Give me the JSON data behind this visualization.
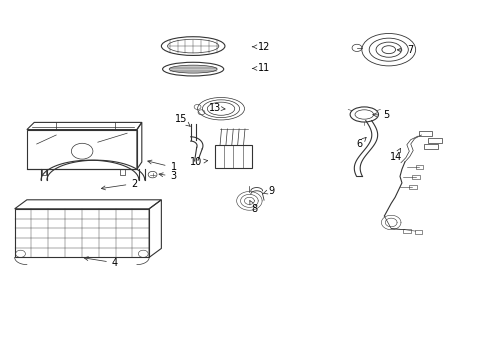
{
  "background_color": "#ffffff",
  "line_color": "#333333",
  "label_color": "#000000",
  "figsize": [
    4.89,
    3.6
  ],
  "dpi": 100,
  "label_specs": [
    [
      1,
      0.355,
      0.535,
      0.295,
      0.555
    ],
    [
      2,
      0.275,
      0.49,
      0.2,
      0.475
    ],
    [
      3,
      0.355,
      0.51,
      0.318,
      0.518
    ],
    [
      4,
      0.235,
      0.27,
      0.165,
      0.285
    ],
    [
      5,
      0.79,
      0.68,
      0.755,
      0.682
    ],
    [
      6,
      0.735,
      0.6,
      0.75,
      0.62
    ],
    [
      7,
      0.84,
      0.86,
      0.805,
      0.862
    ],
    [
      8,
      0.52,
      0.42,
      0.51,
      0.445
    ],
    [
      9,
      0.555,
      0.47,
      0.532,
      0.46
    ],
    [
      10,
      0.4,
      0.55,
      0.432,
      0.555
    ],
    [
      11,
      0.54,
      0.81,
      0.51,
      0.81
    ],
    [
      12,
      0.54,
      0.87,
      0.51,
      0.87
    ],
    [
      13,
      0.44,
      0.7,
      0.462,
      0.697
    ],
    [
      14,
      0.81,
      0.565,
      0.82,
      0.59
    ],
    [
      15,
      0.37,
      0.67,
      0.39,
      0.648
    ]
  ]
}
